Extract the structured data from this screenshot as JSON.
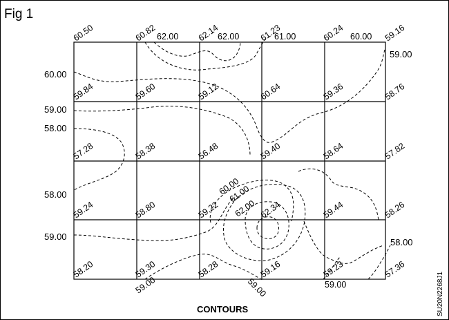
{
  "figure": {
    "label": "Fig 1",
    "caption": "CONTOURS",
    "code": "SU20N2268J1"
  },
  "grid_values": [
    [
      "60.50",
      "60.82",
      "62.14",
      "61.23",
      "60.24",
      "59.16"
    ],
    [
      "59.84",
      "59.60",
      "59.12",
      "60.64",
      "59.36",
      "58.76"
    ],
    [
      "57.28",
      "58.38",
      "56.48",
      "59.40",
      "58.64",
      "57.82"
    ],
    [
      "59.24",
      "58.80",
      "59.22",
      "62.34",
      "59.44",
      "58.26"
    ],
    [
      "58.20",
      "59.30",
      "58.28",
      "59.16",
      "59.23",
      "57.36"
    ]
  ],
  "contour_labels": {
    "top_62_left": "62.00",
    "top_62_right": "62.00",
    "top_61": "61.00",
    "top_60": "60.00",
    "right_59_top": "59.00",
    "left_60": "60.00",
    "left_59_a": "59.00",
    "left_58_a": "58.00",
    "left_58_b": "58.00",
    "left_59_b": "59.00",
    "center_60": "60.00",
    "center_61": "61.00",
    "center_62": "62.00",
    "right_58": "58.00",
    "bottom_59_a": "59.00",
    "bottom_59_b": "59.00",
    "bottom_59_c": "59.00"
  }
}
